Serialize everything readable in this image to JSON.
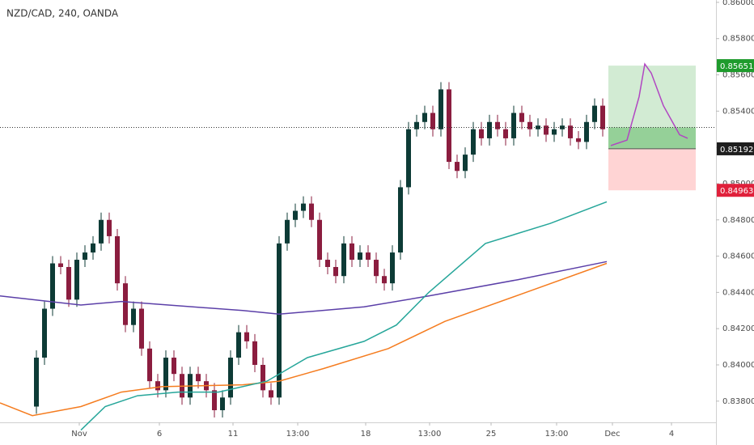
{
  "chart_data": {
    "type": "candlestick",
    "title": "NZD/CAD, 240, OANDA",
    "xlim": [
      -0.5,
      88
    ],
    "ylim": [
      0.83683,
      0.86013
    ],
    "yticks": [
      {
        "value": 0.838,
        "label": "0.83800"
      },
      {
        "value": 0.84,
        "label": "0.84000"
      },
      {
        "value": 0.842,
        "label": "0.84200"
      },
      {
        "value": 0.844,
        "label": "0.84400"
      },
      {
        "value": 0.846,
        "label": "0.84600"
      },
      {
        "value": 0.848,
        "label": "0.84800"
      },
      {
        "value": 0.85,
        "label": "0.85000"
      },
      {
        "value": 0.852,
        "label": "0.85200"
      },
      {
        "value": 0.854,
        "label": "0.85400"
      },
      {
        "value": 0.856,
        "label": "0.85600"
      },
      {
        "value": 0.858,
        "label": "0.85800"
      },
      {
        "value": 0.86,
        "label": "0.86000"
      }
    ],
    "xticks": [
      {
        "value": 9.3,
        "label": "Nov"
      },
      {
        "value": 19.2,
        "label": "6"
      },
      {
        "value": 28.3,
        "label": "11"
      },
      {
        "value": 36.3,
        "label": "13:00"
      },
      {
        "value": 44.7,
        "label": "18"
      },
      {
        "value": 52.6,
        "label": "13:00"
      },
      {
        "value": 60.2,
        "label": "25"
      },
      {
        "value": 68.3,
        "label": "13:00"
      },
      {
        "value": 75.2,
        "label": "Dec"
      },
      {
        "value": 82.5,
        "label": "4"
      }
    ],
    "up_color": "#0d3b36",
    "down_color": "#8b1d3f",
    "x": [
      4,
      5,
      6,
      7,
      8,
      9,
      10,
      11,
      12,
      13,
      14,
      15,
      16,
      17,
      18,
      19,
      20,
      21,
      22,
      23,
      24,
      25,
      26,
      27,
      28,
      29,
      30,
      31,
      32,
      33,
      34,
      35,
      36,
      37,
      38,
      39,
      40,
      41,
      42,
      43,
      44,
      45,
      46,
      47,
      48,
      49,
      50,
      51,
      52,
      53,
      54,
      55,
      56,
      57,
      58,
      59,
      60,
      61,
      62,
      63,
      64,
      65,
      66,
      67,
      68,
      69,
      70,
      71,
      72,
      73,
      74
    ],
    "open": [
      0.8377,
      0.8404,
      0.8431,
      0.8456,
      0.8454,
      0.8436,
      0.8458,
      0.8462,
      0.8467,
      0.848,
      0.8471,
      0.8445,
      0.8422,
      0.8431,
      0.8409,
      0.8391,
      0.8386,
      0.8404,
      0.8395,
      0.8382,
      0.8395,
      0.8391,
      0.8386,
      0.8375,
      0.8382,
      0.8404,
      0.8418,
      0.8413,
      0.84,
      0.8386,
      0.8382,
      0.8467,
      0.848,
      0.8485,
      0.8489,
      0.848,
      0.8458,
      0.8454,
      0.8449,
      0.8467,
      0.8458,
      0.8462,
      0.8458,
      0.8449,
      0.8445,
      0.8462,
      0.8498,
      0.853,
      0.8534,
      0.8539,
      0.853,
      0.8552,
      0.8512,
      0.8507,
      0.8516,
      0.853,
      0.8525,
      0.8534,
      0.853,
      0.8525,
      0.8539,
      0.8534,
      0.853,
      0.8532,
      0.8527,
      0.853,
      0.8532,
      0.8525,
      0.8523,
      0.8534,
      0.8543
    ],
    "high": [
      0.8408,
      0.8435,
      0.846,
      0.846,
      0.8458,
      0.8462,
      0.8466,
      0.8471,
      0.8484,
      0.8484,
      0.8475,
      0.8449,
      0.8435,
      0.8435,
      0.8413,
      0.8395,
      0.8408,
      0.8408,
      0.8399,
      0.8399,
      0.8399,
      0.8395,
      0.839,
      0.8386,
      0.8408,
      0.8422,
      0.8422,
      0.8417,
      0.8404,
      0.839,
      0.8471,
      0.8484,
      0.8489,
      0.8493,
      0.8493,
      0.8484,
      0.8462,
      0.8458,
      0.8471,
      0.8471,
      0.8466,
      0.8466,
      0.8462,
      0.8453,
      0.8466,
      0.8502,
      0.8534,
      0.8538,
      0.8543,
      0.8543,
      0.8556,
      0.8556,
      0.8516,
      0.852,
      0.8534,
      0.8534,
      0.8538,
      0.8538,
      0.8534,
      0.8543,
      0.8543,
      0.8538,
      0.8536,
      0.8536,
      0.8534,
      0.8536,
      0.8536,
      0.8529,
      0.8538,
      0.8547,
      0.8547
    ],
    "low": [
      0.8373,
      0.84,
      0.8427,
      0.845,
      0.8432,
      0.8432,
      0.8454,
      0.8458,
      0.8463,
      0.8467,
      0.8441,
      0.8418,
      0.8418,
      0.8405,
      0.8387,
      0.8382,
      0.8382,
      0.8391,
      0.8378,
      0.8378,
      0.8387,
      0.8382,
      0.8371,
      0.8371,
      0.8378,
      0.84,
      0.8409,
      0.8396,
      0.8382,
      0.8378,
      0.8378,
      0.8463,
      0.8476,
      0.8481,
      0.8476,
      0.8454,
      0.845,
      0.8445,
      0.8445,
      0.8454,
      0.8454,
      0.8454,
      0.8445,
      0.8441,
      0.8441,
      0.8458,
      0.8494,
      0.8526,
      0.853,
      0.8526,
      0.8526,
      0.8508,
      0.8503,
      0.8503,
      0.8512,
      0.8521,
      0.8521,
      0.8526,
      0.8521,
      0.8521,
      0.853,
      0.8526,
      0.8526,
      0.8523,
      0.8523,
      0.8526,
      0.8521,
      0.8519,
      0.8519,
      0.853,
      0.8526
    ],
    "close": [
      0.8404,
      0.8431,
      0.8456,
      0.8454,
      0.8436,
      0.8458,
      0.8462,
      0.8467,
      0.848,
      0.8471,
      0.8445,
      0.8422,
      0.8431,
      0.8409,
      0.8391,
      0.8386,
      0.8404,
      0.8395,
      0.8382,
      0.8395,
      0.8391,
      0.8386,
      0.8375,
      0.8382,
      0.8404,
      0.8418,
      0.8413,
      0.84,
      0.8386,
      0.8382,
      0.8467,
      0.848,
      0.8485,
      0.8489,
      0.848,
      0.8458,
      0.8454,
      0.8449,
      0.8467,
      0.8458,
      0.8462,
      0.8458,
      0.8449,
      0.8445,
      0.8462,
      0.8498,
      0.853,
      0.8534,
      0.8539,
      0.853,
      0.8552,
      0.8512,
      0.8507,
      0.8516,
      0.853,
      0.8525,
      0.8534,
      0.853,
      0.8525,
      0.8539,
      0.8534,
      0.853,
      0.8532,
      0.8527,
      0.853,
      0.8532,
      0.8525,
      0.8523,
      0.8534,
      0.8543,
      0.853
    ],
    "lines": [
      {
        "color": "#5b3fa8",
        "x": [
          -0.5,
          9.5,
          14.5,
          29.5,
          34,
          44.5,
          52.5,
          63.5,
          74.5
        ],
        "values": [
          0.8438,
          0.8433,
          0.8435,
          0.843,
          0.8428,
          0.8432,
          0.8438,
          0.8447,
          0.8457
        ]
      },
      {
        "color": "#f57c1f",
        "x": [
          -0.5,
          3.5,
          9.5,
          14.5,
          19.5,
          29.5,
          34,
          39.5,
          47.5,
          54.5,
          64.5,
          74.5
        ],
        "values": [
          0.8379,
          0.8372,
          0.8377,
          0.8385,
          0.8388,
          0.8389,
          0.8391,
          0.8398,
          0.8409,
          0.8424,
          0.844,
          0.8456
        ]
      },
      {
        "color": "#26a69a",
        "x": [
          9.5,
          12.5,
          16.5,
          21.5,
          26.5,
          32.5,
          37.5,
          44.5,
          48.5,
          52.5,
          59.5,
          67.5,
          74.5
        ],
        "values": [
          0.8364,
          0.8377,
          0.8383,
          0.8385,
          0.8385,
          0.8391,
          0.8404,
          0.8413,
          0.8422,
          0.844,
          0.8467,
          0.8478,
          0.849
        ]
      },
      {
        "color": "#b146c2",
        "x": [
          75,
          77,
          78.5,
          79.2,
          80,
          81.5,
          83.5,
          84.5
        ],
        "values": [
          0.8521,
          0.8524,
          0.8548,
          0.8566,
          0.8561,
          0.8543,
          0.8527,
          0.8525
        ]
      }
    ],
    "last_price": 0.8531,
    "position": {
      "entry": 0.85192,
      "target": 0.85651,
      "stop": 0.84963,
      "x": [
        74.7,
        85.5
      ]
    }
  }
}
